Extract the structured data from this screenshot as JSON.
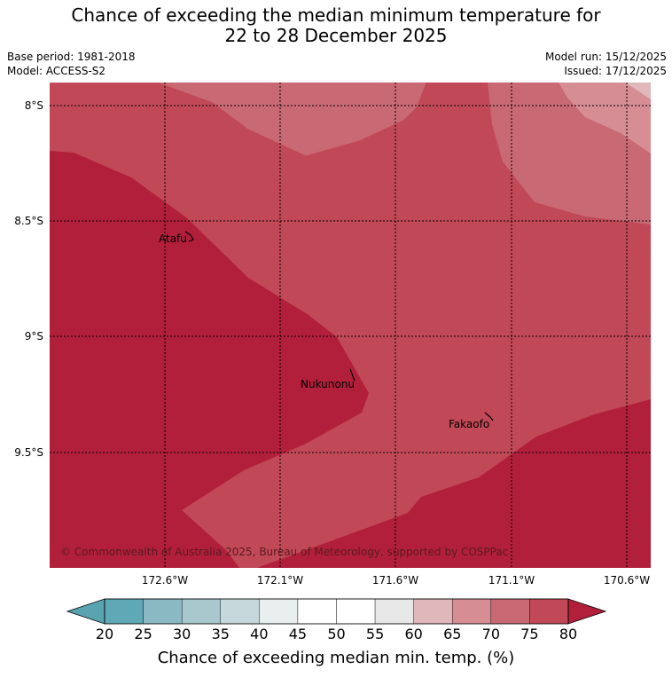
{
  "title": {
    "line1": "Chance of exceeding the median minimum temperature for",
    "line2": "22 to 28 December 2025"
  },
  "meta": {
    "base_period": "Base period: 1981-2018",
    "model": "Model: ACCESS-S2",
    "model_run": "Model run: 15/12/2025",
    "issued": "Issued: 17/12/2025"
  },
  "map": {
    "lat_labels": [
      "8°S",
      "8.5°S",
      "9°S",
      "9.5°S"
    ],
    "lon_labels": [
      "172.6°W",
      "172.1°W",
      "171.6°W",
      "171.1°W",
      "170.6°W"
    ],
    "places": [
      "Atafu",
      "Nukunonu",
      "Fakaofo"
    ],
    "copyright": "© Commonwealth of Australia 2025, Bureau of Meteorology, supported by COSPPac",
    "colors": {
      "band_75_80": "#c14856",
      "band_80_plus": "#b21f3a",
      "band_70_75": "#c96973",
      "band_65_70": "#d68d94"
    }
  },
  "colorbar": {
    "ticks": [
      "20",
      "25",
      "30",
      "35",
      "40",
      "45",
      "50",
      "55",
      "60",
      "65",
      "70",
      "75",
      "80"
    ],
    "title": "Chance of exceeding median min. temp. (%)",
    "colors": [
      "#5fa8b5",
      "#8ab9c3",
      "#a9c8cd",
      "#c6d8db",
      "#e9eeef",
      "#ffffff",
      "#ffffff",
      "#e8e8e8",
      "#e0b7bb",
      "#d68d94",
      "#c96973",
      "#c14856"
    ],
    "low_extend_color": "#5aa3b0",
    "high_extend_color": "#b21f3a"
  }
}
